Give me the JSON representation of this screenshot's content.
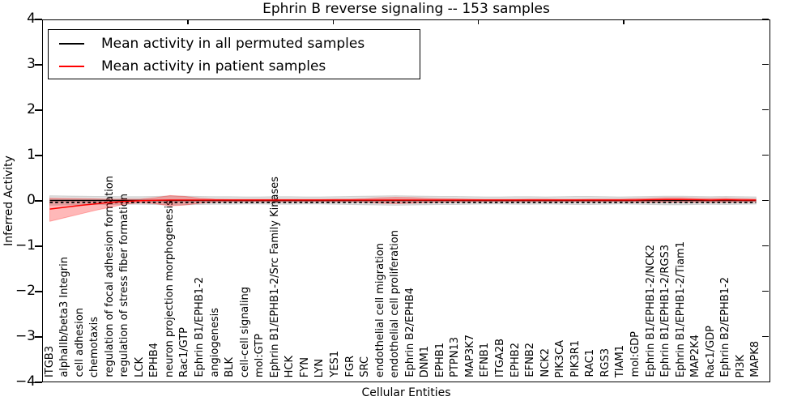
{
  "chart_data": {
    "type": "line",
    "title": "Ephrin B reverse signaling -- 153 samples",
    "xlabel": "Cellular Entities",
    "ylabel": "Inferred Activity",
    "ylim": [
      -4,
      4
    ],
    "yticks": [
      4,
      3,
      2,
      1,
      0,
      -1,
      -2,
      -3,
      -4
    ],
    "grid": false,
    "legend_position": "upper left",
    "x_tick_rotation": 90,
    "categories": [
      "ITGB3",
      "alphaIIb/beta3 Integrin",
      "cell adhesion",
      "chemotaxis",
      "regulation of focal adhesion formation",
      "regulation of stress fiber formation",
      "LCK",
      "EPHB4",
      "neuron projection morphogenesis",
      "Rac1/GTP",
      "Ephrin B1/EPHB1-2",
      "angiogenesis",
      "BLK",
      "cell-cell signaling",
      "mol:GTP",
      "Ephrin B1/EPHB1-2/Src Family Kinases",
      "HCK",
      "FYN",
      "LYN",
      "YES1",
      "FGR",
      "SRC",
      "endothelial cell migration",
      "endothelial cell proliferation",
      "Ephrin B2/EPHB4",
      "DNM1",
      "EPHB1",
      "PTPN13",
      "MAP3K7",
      "EFNB1",
      "ITGA2B",
      "EPHB2",
      "EFNB2",
      "NCK2",
      "PIK3CA",
      "PIK3R1",
      "RAC1",
      "RGS3",
      "TIAM1",
      "mol:GDP",
      "Ephrin B1/EPHB1-2/NCK2",
      "Ephrin B1/EPHB1-2/RGS3",
      "Ephrin B1/EPHB1-2/Tiam1",
      "MAP2K4",
      "Rac1/GDP",
      "Ephrin B2/EPHB1-2",
      "PI3K",
      "MAPK8"
    ],
    "series": [
      {
        "name": "Mean activity in all permuted samples",
        "color": "#000000",
        "line_style": "solid_with_dashed_overlay",
        "band_color": "rgba(0,0,0,0.12)",
        "values": [
          0,
          0,
          0,
          0,
          0,
          0,
          0,
          0,
          0,
          0,
          0,
          0,
          0,
          0,
          0,
          0,
          0,
          0,
          0,
          0,
          0,
          0,
          0,
          0,
          0,
          0,
          0,
          0,
          0,
          0,
          0,
          0,
          0,
          0,
          0,
          0,
          0,
          0,
          0,
          0,
          0,
          0,
          0,
          0,
          0,
          0,
          0,
          0
        ],
        "band_high": [
          0.105,
          0.1,
          0.095,
          0.09,
          0.09,
          0.085,
          0.085,
          0.09,
          0.1,
          0.095,
          0.09,
          0.085,
          0.085,
          0.08,
          0.08,
          0.085,
          0.085,
          0.08,
          0.08,
          0.085,
          0.09,
          0.095,
          0.1,
          0.105,
          0.1,
          0.095,
          0.09,
          0.09,
          0.085,
          0.08,
          0.08,
          0.085,
          0.085,
          0.08,
          0.085,
          0.09,
          0.09,
          0.085,
          0.08,
          0.085,
          0.09,
          0.095,
          0.095,
          0.09,
          0.085,
          0.09,
          0.085,
          0.08
        ],
        "band_low": [
          -0.105,
          -0.1,
          -0.095,
          -0.09,
          -0.09,
          -0.085,
          -0.085,
          -0.09,
          -0.1,
          -0.095,
          -0.09,
          -0.085,
          -0.085,
          -0.08,
          -0.08,
          -0.085,
          -0.085,
          -0.08,
          -0.08,
          -0.085,
          -0.09,
          -0.095,
          -0.1,
          -0.105,
          -0.1,
          -0.095,
          -0.09,
          -0.09,
          -0.085,
          -0.08,
          -0.08,
          -0.085,
          -0.085,
          -0.08,
          -0.085,
          -0.09,
          -0.09,
          -0.085,
          -0.08,
          -0.085,
          -0.09,
          -0.095,
          -0.095,
          -0.09,
          -0.085,
          -0.09,
          -0.085,
          -0.08
        ]
      },
      {
        "name": "Mean activity in patient samples",
        "color": "#ff0000",
        "line_style": "solid",
        "band_color": "rgba(255,0,0,0.28)",
        "values": [
          -0.19,
          -0.15,
          -0.11,
          -0.075,
          -0.045,
          -0.02,
          -0.005,
          0.005,
          0.01,
          0.01,
          0.01,
          0.01,
          0.01,
          0.01,
          0.01,
          0.01,
          0.01,
          0.01,
          0.01,
          0.01,
          0.01,
          0.01,
          0.01,
          0.01,
          0.01,
          0.01,
          0.01,
          0.01,
          0.01,
          0.01,
          0.01,
          0.01,
          0.01,
          0.01,
          0.01,
          0.01,
          0.01,
          0.01,
          0.01,
          0.01,
          0.015,
          0.02,
          0.02,
          0.015,
          0.01,
          0.015,
          0.01,
          0.01
        ],
        "band_high": [
          0.05,
          0.045,
          0.04,
          0.035,
          0.03,
          0.03,
          0.03,
          0.06,
          0.11,
          0.09,
          0.05,
          0.03,
          0.025,
          0.025,
          0.025,
          0.025,
          0.025,
          0.025,
          0.025,
          0.03,
          0.03,
          0.04,
          0.06,
          0.07,
          0.065,
          0.05,
          0.04,
          0.035,
          0.03,
          0.025,
          0.025,
          0.025,
          0.03,
          0.03,
          0.025,
          0.025,
          0.03,
          0.03,
          0.03,
          0.04,
          0.05,
          0.06,
          0.06,
          0.05,
          0.045,
          0.05,
          0.04,
          0.03
        ],
        "band_low": [
          -0.46,
          -0.38,
          -0.3,
          -0.22,
          -0.15,
          -0.08,
          -0.05,
          -0.07,
          -0.12,
          -0.1,
          -0.06,
          -0.035,
          -0.03,
          -0.03,
          -0.03,
          -0.03,
          -0.03,
          -0.03,
          -0.03,
          -0.03,
          -0.03,
          -0.04,
          -0.06,
          -0.07,
          -0.06,
          -0.05,
          -0.04,
          -0.035,
          -0.03,
          -0.03,
          -0.03,
          -0.03,
          -0.03,
          -0.03,
          -0.03,
          -0.03,
          -0.03,
          -0.03,
          -0.03,
          -0.035,
          -0.04,
          -0.04,
          -0.04,
          -0.04,
          -0.035,
          -0.04,
          -0.035,
          -0.03
        ]
      }
    ]
  }
}
